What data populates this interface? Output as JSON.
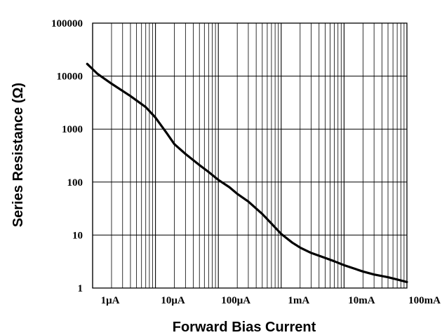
{
  "chart_data": {
    "type": "line",
    "title": "",
    "xlabel": "Forward Bias Current",
    "ylabel": "Series Resistance (Ω)",
    "x_scale": "log",
    "y_scale": "log",
    "x_unit": "A",
    "y_unit": "Ω",
    "xlim": [
      1e-06,
      0.1
    ],
    "ylim": [
      1,
      100000
    ],
    "grid": true,
    "legend": "none",
    "x_tick_values": [
      1e-06,
      1e-05,
      0.0001,
      0.001,
      0.01,
      0.1
    ],
    "x_tick_labels": [
      "1μA",
      "10μA",
      "100μA",
      "1mA",
      "10mA",
      "100mA"
    ],
    "y_tick_values": [
      1,
      10,
      100,
      1000,
      10000,
      100000
    ],
    "y_tick_labels": [
      "1",
      "10",
      "100",
      "1000",
      "10000",
      "100000"
    ],
    "series": [
      {
        "color": "#000000",
        "x": [
          8.2e-07,
          1.2e-06,
          2e-06,
          4e-06,
          7e-06,
          1e-05,
          1.5e-05,
          2e-05,
          3e-05,
          5e-05,
          7e-05,
          0.0001,
          0.00015,
          0.0002,
          0.0003,
          0.0005,
          0.0007,
          0.001,
          0.0015,
          0.002,
          0.003,
          0.005,
          0.007,
          0.01,
          0.015,
          0.02,
          0.03,
          0.05,
          0.07,
          0.1
        ],
        "y": [
          17000,
          11000,
          7200,
          4200,
          2600,
          1650,
          850,
          520,
          340,
          210,
          155,
          110,
          80,
          60,
          43,
          25,
          16.5,
          10.5,
          7.2,
          5.8,
          4.6,
          3.7,
          3.2,
          2.7,
          2.3,
          2.05,
          1.8,
          1.6,
          1.45,
          1.3
        ]
      }
    ]
  }
}
